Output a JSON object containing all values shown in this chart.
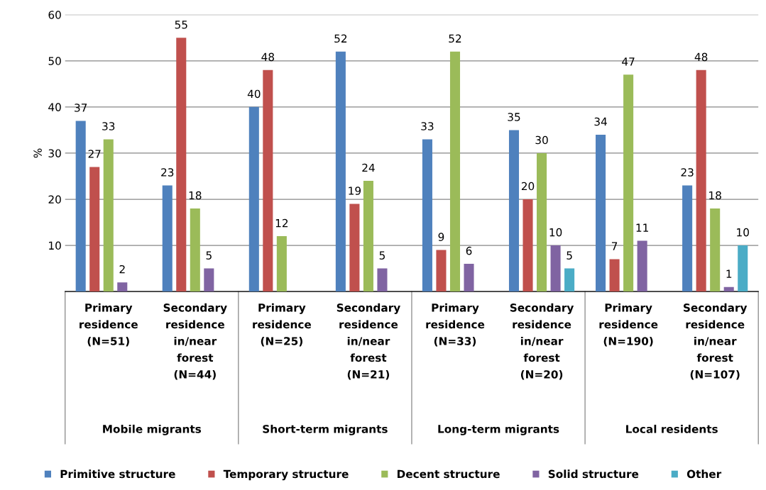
{
  "chart_data": {
    "type": "bar",
    "ylabel": "%",
    "categories": [
      "Primary\nresidence\n(N=51)",
      "Secondary\nresidence\nin/near\nforest\n(N=44)",
      "Primary\nresidence\n(N=25)",
      "Secondary\nresidence\nin/near\nforest\n(N=21)",
      "Primary\nresidence\n(N=33)",
      "Secondary\nresidence\nin/near\nforest\n(N=20)",
      "Primary\nresidence\n(N=190)",
      "Secondary\nresidence\nin/near\nforest\n(N=107)"
    ],
    "annotations": [
      "Mobile migrants",
      "Short-term migrants",
      "Long-term migrants",
      "Local residents"
    ],
    "series": [
      {
        "name": "Primitive structure",
        "color": "#4f81bd",
        "values": [
          37,
          23,
          40,
          52,
          33,
          35,
          34,
          23
        ]
      },
      {
        "name": "Temporary structure",
        "color": "#c0504d",
        "values": [
          27,
          55,
          48,
          19,
          9,
          20,
          7,
          48
        ]
      },
      {
        "name": "Decent structure",
        "color": "#9bbb59",
        "values": [
          33,
          18,
          12,
          24,
          52,
          30,
          47,
          18
        ]
      },
      {
        "name": "Solid structure",
        "color": "#8064a2",
        "values": [
          2,
          5,
          null,
          5,
          6,
          10,
          11,
          1
        ]
      },
      {
        "name": "Other",
        "color": "#4bacc6",
        "values": [
          null,
          null,
          null,
          null,
          null,
          5,
          null,
          10
        ]
      }
    ],
    "ylim": [
      0,
      60
    ],
    "yticks": [
      {
        "value": 0,
        "label": null
      },
      10,
      20,
      30,
      40,
      50,
      60
    ],
    "grid": "y",
    "legend": "bottom",
    "data_labels": true
  }
}
